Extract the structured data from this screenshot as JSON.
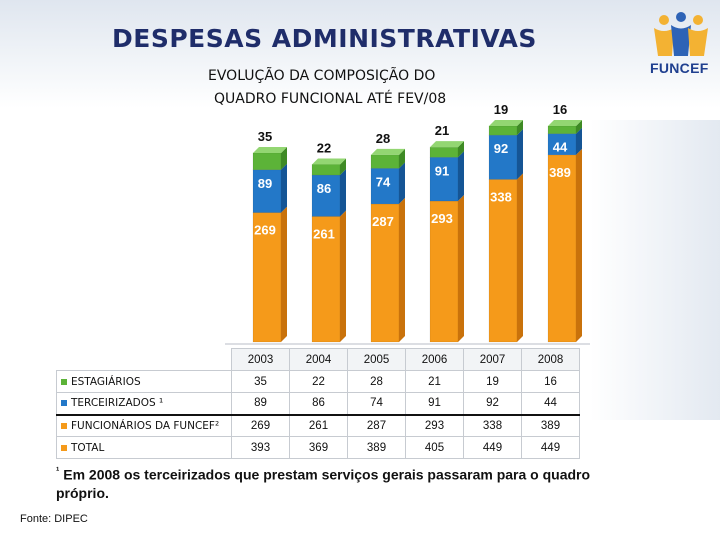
{
  "title": "DESPESAS ADMINISTRATIVAS",
  "subtitle_line1": "EVOLUÇÃO DA COMPOSIÇÃO DO",
  "subtitle_line2": "QUADRO FUNCIONAL ATÉ FEV/08",
  "logo_text": "FUNCEF",
  "footnote_mark": "¹",
  "footnote_text": "Em 2008 os terceirizados que prestam serviços gerais passaram para o quadro próprio.",
  "source": "Fonte: DIPEC",
  "colors": {
    "estagiarios": "#5cb338",
    "terceirizados": "#2378c8",
    "funcionarios": "#f59a1a",
    "total": "#f59a1a",
    "title": "#1f2d6a"
  },
  "chart_data": {
    "type": "bar",
    "stacked": true,
    "categories": [
      "2003",
      "2004",
      "2005",
      "2006",
      "2007",
      "2008"
    ],
    "series": [
      {
        "name": "FUNCIONÁRIOS DA FUNCEF²",
        "values": [
          269,
          261,
          287,
          293,
          338,
          389
        ]
      },
      {
        "name": "TERCEIRIZADOS ¹",
        "values": [
          89,
          86,
          74,
          91,
          92,
          44
        ]
      },
      {
        "name": "ESTAGIÁRIOS",
        "values": [
          35,
          22,
          28,
          21,
          19,
          16
        ]
      }
    ],
    "table": {
      "columns": [
        "2003",
        "2004",
        "2005",
        "2006",
        "2007",
        "2008"
      ],
      "rows": [
        {
          "label": "ESTAGIÁRIOS",
          "values": [
            35,
            22,
            28,
            21,
            19,
            16
          ]
        },
        {
          "label": "TERCEIRIZADOS ¹",
          "values": [
            89,
            86,
            74,
            91,
            92,
            44
          ]
        },
        {
          "label": "FUNCIONÁRIOS DA FUNCEF²",
          "values": [
            269,
            261,
            287,
            293,
            338,
            389
          ]
        },
        {
          "label": "TOTAL",
          "values": [
            393,
            369,
            389,
            405,
            449,
            449
          ]
        }
      ]
    },
    "ylim": [
      0,
      449
    ]
  }
}
